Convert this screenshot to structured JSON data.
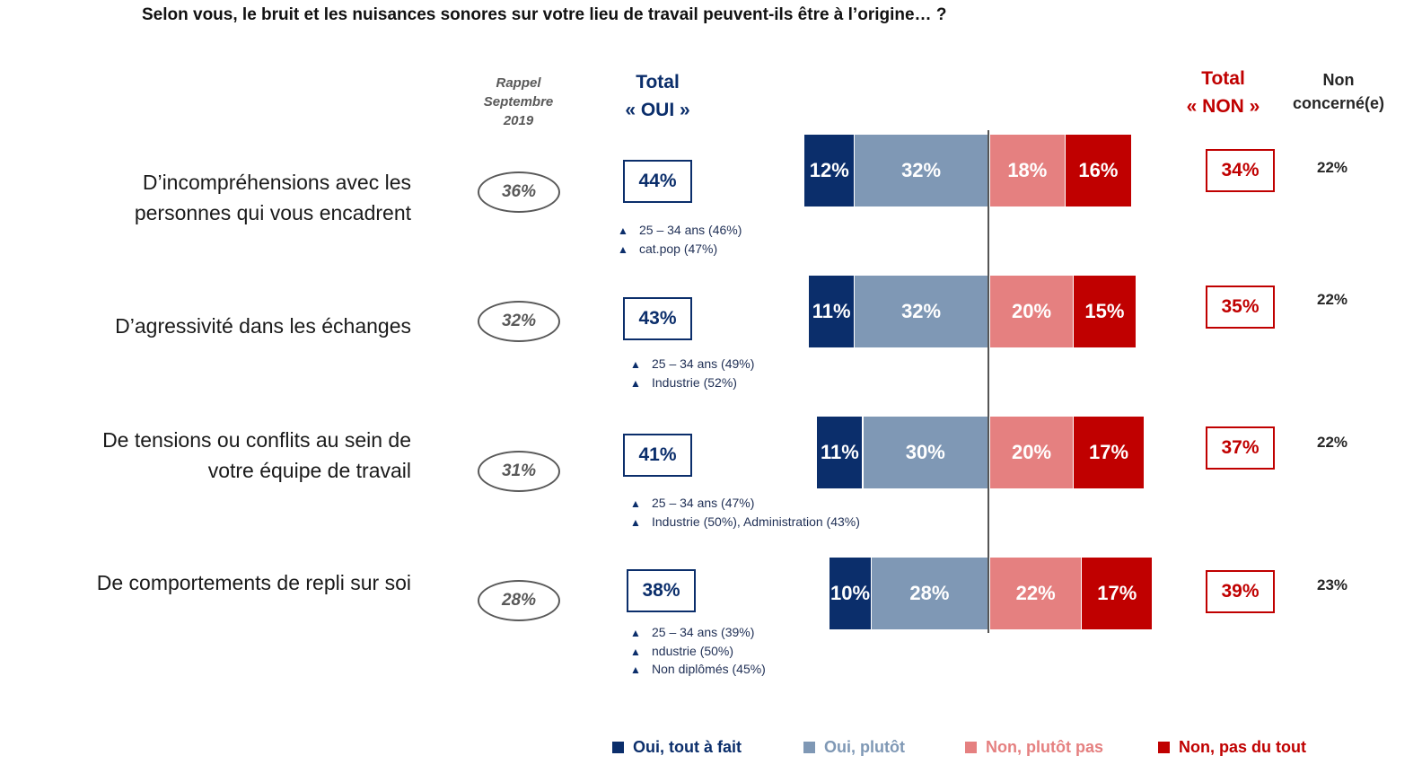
{
  "title": "Selon vous, le bruit et les nuisances sonores sur votre lieu de travail peuvent-ils être à l’origine… ?",
  "headers": {
    "rappel": [
      "Rappel",
      "Septembre",
      "2019"
    ],
    "oui": [
      "Total",
      "« OUI »"
    ],
    "non": [
      "Total",
      "« NON »"
    ],
    "non_concerne": [
      "Non",
      "concerné(e)"
    ]
  },
  "colors": {
    "oui_tout_a_fait": "#0b2e6b",
    "oui_plutot": "#7f98b5",
    "non_plutot_pas": "#e58080",
    "non_pas_du_tout": "#c00000"
  },
  "chart_data": {
    "type": "bar",
    "orientation": "horizontal-diverging",
    "categories": [
      "D’incompréhensions avec les personnes qui vous encadrent",
      "D’agressivité dans les échanges",
      "De tensions ou conflits au sein de votre équipe de travail",
      "De comportements de repli sur soi"
    ],
    "series": [
      {
        "name": "Oui, tout à fait",
        "values": [
          12,
          11,
          11,
          10
        ],
        "labels": [
          "12%",
          "11%",
          "11%",
          "10%"
        ]
      },
      {
        "name": "Oui, plutôt",
        "values": [
          32,
          32,
          30,
          28
        ],
        "labels": [
          "32%",
          "32%",
          "30%",
          "28%"
        ]
      },
      {
        "name": "Non, plutôt pas",
        "values": [
          18,
          20,
          20,
          22
        ],
        "labels": [
          "18%",
          "20%",
          "20%",
          "22%"
        ]
      },
      {
        "name": "Non, pas du tout",
        "values": [
          16,
          15,
          17,
          17
        ],
        "labels": [
          "16%",
          "15%",
          "17%",
          "17%"
        ]
      }
    ],
    "legend_position": "bottom",
    "grid": false
  },
  "rows": [
    {
      "label_lines": [
        "D’incompréhensions avec les",
        "personnes qui vous encadrent"
      ],
      "rappel": "36%",
      "total_oui": "44%",
      "total_non": "34%",
      "non_concerne": "22%",
      "notes": [
        "25 – 34 ans (46%)",
        "cat.pop (47%)"
      ]
    },
    {
      "label_lines": [
        "D’agressivité dans les échanges"
      ],
      "rappel": "32%",
      "total_oui": "43%",
      "total_non": "35%",
      "non_concerne": "22%",
      "notes": [
        "25 – 34 ans (49%)",
        "Industrie (52%)"
      ]
    },
    {
      "label_lines": [
        "De tensions ou conflits au sein de",
        "votre équipe de travail"
      ],
      "rappel": "31%",
      "total_oui": "41%",
      "total_non": "37%",
      "non_concerne": "22%",
      "notes": [
        "25 – 34 ans (47%)",
        "Industrie (50%), Administration (43%)"
      ]
    },
    {
      "label_lines": [
        "De comportements de repli sur soi"
      ],
      "rappel": "28%",
      "total_oui": "38%",
      "total_non": "39%",
      "non_concerne": "23%",
      "notes": [
        "25 – 34 ans (39%)",
        "ndustrie (50%)",
        "Non diplômés (45%)"
      ]
    }
  ],
  "legend": [
    {
      "label": "Oui, tout à fait",
      "color": "#0b2e6b"
    },
    {
      "label": "Oui, plutôt",
      "color": "#7f98b5"
    },
    {
      "label": "Non, plutôt pas",
      "color": "#e58080"
    },
    {
      "label": "Non, pas du tout",
      "color": "#c00000"
    }
  ]
}
